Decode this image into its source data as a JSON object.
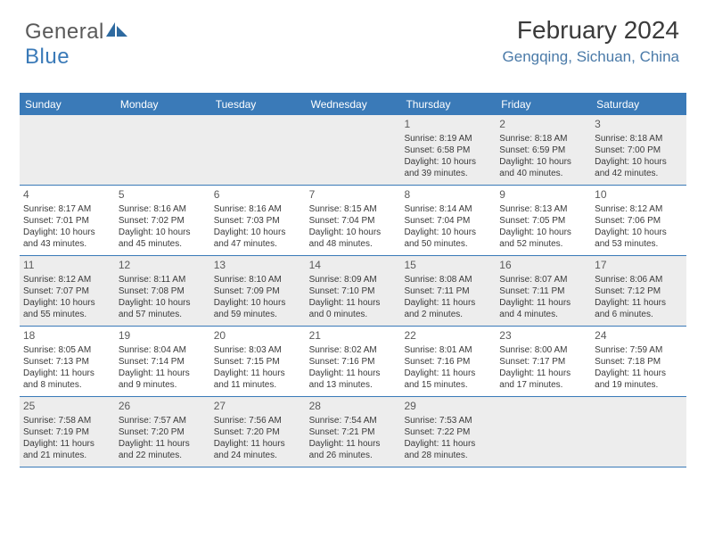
{
  "logo": {
    "text1": "General",
    "text2": "Blue"
  },
  "header": {
    "title": "February 2024",
    "location": "Gengqing, Sichuan, China"
  },
  "colors": {
    "header_bg": "#3a7ab8",
    "shade_bg": "#ededed",
    "text": "#3a3a3a",
    "location": "#4a7aa8"
  },
  "day_headers": [
    "Sunday",
    "Monday",
    "Tuesday",
    "Wednesday",
    "Thursday",
    "Friday",
    "Saturday"
  ],
  "weeks": [
    [
      {
        "blank": true
      },
      {
        "blank": true
      },
      {
        "blank": true
      },
      {
        "blank": true
      },
      {
        "day": "1",
        "sunrise": "Sunrise: 8:19 AM",
        "sunset": "Sunset: 6:58 PM",
        "daylight1": "Daylight: 10 hours",
        "daylight2": "and 39 minutes."
      },
      {
        "day": "2",
        "sunrise": "Sunrise: 8:18 AM",
        "sunset": "Sunset: 6:59 PM",
        "daylight1": "Daylight: 10 hours",
        "daylight2": "and 40 minutes."
      },
      {
        "day": "3",
        "sunrise": "Sunrise: 8:18 AM",
        "sunset": "Sunset: 7:00 PM",
        "daylight1": "Daylight: 10 hours",
        "daylight2": "and 42 minutes."
      }
    ],
    [
      {
        "day": "4",
        "sunrise": "Sunrise: 8:17 AM",
        "sunset": "Sunset: 7:01 PM",
        "daylight1": "Daylight: 10 hours",
        "daylight2": "and 43 minutes."
      },
      {
        "day": "5",
        "sunrise": "Sunrise: 8:16 AM",
        "sunset": "Sunset: 7:02 PM",
        "daylight1": "Daylight: 10 hours",
        "daylight2": "and 45 minutes."
      },
      {
        "day": "6",
        "sunrise": "Sunrise: 8:16 AM",
        "sunset": "Sunset: 7:03 PM",
        "daylight1": "Daylight: 10 hours",
        "daylight2": "and 47 minutes."
      },
      {
        "day": "7",
        "sunrise": "Sunrise: 8:15 AM",
        "sunset": "Sunset: 7:04 PM",
        "daylight1": "Daylight: 10 hours",
        "daylight2": "and 48 minutes."
      },
      {
        "day": "8",
        "sunrise": "Sunrise: 8:14 AM",
        "sunset": "Sunset: 7:04 PM",
        "daylight1": "Daylight: 10 hours",
        "daylight2": "and 50 minutes."
      },
      {
        "day": "9",
        "sunrise": "Sunrise: 8:13 AM",
        "sunset": "Sunset: 7:05 PM",
        "daylight1": "Daylight: 10 hours",
        "daylight2": "and 52 minutes."
      },
      {
        "day": "10",
        "sunrise": "Sunrise: 8:12 AM",
        "sunset": "Sunset: 7:06 PM",
        "daylight1": "Daylight: 10 hours",
        "daylight2": "and 53 minutes."
      }
    ],
    [
      {
        "day": "11",
        "sunrise": "Sunrise: 8:12 AM",
        "sunset": "Sunset: 7:07 PM",
        "daylight1": "Daylight: 10 hours",
        "daylight2": "and 55 minutes."
      },
      {
        "day": "12",
        "sunrise": "Sunrise: 8:11 AM",
        "sunset": "Sunset: 7:08 PM",
        "daylight1": "Daylight: 10 hours",
        "daylight2": "and 57 minutes."
      },
      {
        "day": "13",
        "sunrise": "Sunrise: 8:10 AM",
        "sunset": "Sunset: 7:09 PM",
        "daylight1": "Daylight: 10 hours",
        "daylight2": "and 59 minutes."
      },
      {
        "day": "14",
        "sunrise": "Sunrise: 8:09 AM",
        "sunset": "Sunset: 7:10 PM",
        "daylight1": "Daylight: 11 hours",
        "daylight2": "and 0 minutes."
      },
      {
        "day": "15",
        "sunrise": "Sunrise: 8:08 AM",
        "sunset": "Sunset: 7:11 PM",
        "daylight1": "Daylight: 11 hours",
        "daylight2": "and 2 minutes."
      },
      {
        "day": "16",
        "sunrise": "Sunrise: 8:07 AM",
        "sunset": "Sunset: 7:11 PM",
        "daylight1": "Daylight: 11 hours",
        "daylight2": "and 4 minutes."
      },
      {
        "day": "17",
        "sunrise": "Sunrise: 8:06 AM",
        "sunset": "Sunset: 7:12 PM",
        "daylight1": "Daylight: 11 hours",
        "daylight2": "and 6 minutes."
      }
    ],
    [
      {
        "day": "18",
        "sunrise": "Sunrise: 8:05 AM",
        "sunset": "Sunset: 7:13 PM",
        "daylight1": "Daylight: 11 hours",
        "daylight2": "and 8 minutes."
      },
      {
        "day": "19",
        "sunrise": "Sunrise: 8:04 AM",
        "sunset": "Sunset: 7:14 PM",
        "daylight1": "Daylight: 11 hours",
        "daylight2": "and 9 minutes."
      },
      {
        "day": "20",
        "sunrise": "Sunrise: 8:03 AM",
        "sunset": "Sunset: 7:15 PM",
        "daylight1": "Daylight: 11 hours",
        "daylight2": "and 11 minutes."
      },
      {
        "day": "21",
        "sunrise": "Sunrise: 8:02 AM",
        "sunset": "Sunset: 7:16 PM",
        "daylight1": "Daylight: 11 hours",
        "daylight2": "and 13 minutes."
      },
      {
        "day": "22",
        "sunrise": "Sunrise: 8:01 AM",
        "sunset": "Sunset: 7:16 PM",
        "daylight1": "Daylight: 11 hours",
        "daylight2": "and 15 minutes."
      },
      {
        "day": "23",
        "sunrise": "Sunrise: 8:00 AM",
        "sunset": "Sunset: 7:17 PM",
        "daylight1": "Daylight: 11 hours",
        "daylight2": "and 17 minutes."
      },
      {
        "day": "24",
        "sunrise": "Sunrise: 7:59 AM",
        "sunset": "Sunset: 7:18 PM",
        "daylight1": "Daylight: 11 hours",
        "daylight2": "and 19 minutes."
      }
    ],
    [
      {
        "day": "25",
        "sunrise": "Sunrise: 7:58 AM",
        "sunset": "Sunset: 7:19 PM",
        "daylight1": "Daylight: 11 hours",
        "daylight2": "and 21 minutes."
      },
      {
        "day": "26",
        "sunrise": "Sunrise: 7:57 AM",
        "sunset": "Sunset: 7:20 PM",
        "daylight1": "Daylight: 11 hours",
        "daylight2": "and 22 minutes."
      },
      {
        "day": "27",
        "sunrise": "Sunrise: 7:56 AM",
        "sunset": "Sunset: 7:20 PM",
        "daylight1": "Daylight: 11 hours",
        "daylight2": "and 24 minutes."
      },
      {
        "day": "28",
        "sunrise": "Sunrise: 7:54 AM",
        "sunset": "Sunset: 7:21 PM",
        "daylight1": "Daylight: 11 hours",
        "daylight2": "and 26 minutes."
      },
      {
        "day": "29",
        "sunrise": "Sunrise: 7:53 AM",
        "sunset": "Sunset: 7:22 PM",
        "daylight1": "Daylight: 11 hours",
        "daylight2": "and 28 minutes."
      },
      {
        "blank": true
      },
      {
        "blank": true
      }
    ]
  ]
}
